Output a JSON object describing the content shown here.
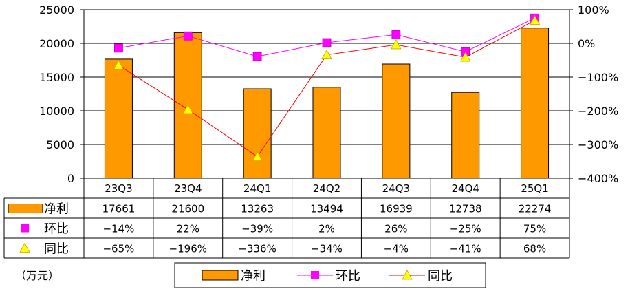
{
  "chart_data": {
    "type": "bar",
    "categories": [
      "23Q3",
      "23Q4",
      "24Q1",
      "24Q2",
      "24Q3",
      "24Q4",
      "25Q1"
    ],
    "series": [
      {
        "name": "净利",
        "kind": "bar",
        "axis": "left",
        "color": "#FF9900",
        "values": [
          17661,
          21600,
          13263,
          13494,
          16939,
          12738,
          22274
        ]
      },
      {
        "name": "环比",
        "kind": "line",
        "axis": "right",
        "color": "#FF00FF",
        "marker": "square",
        "values": [
          -14,
          22,
          -39,
          2,
          26,
          -25,
          75
        ]
      },
      {
        "name": "同比",
        "kind": "line",
        "axis": "right",
        "color": "#FF0000",
        "marker": "triangle",
        "marker_color": "#FFFF00",
        "values": [
          -65,
          -196,
          -336,
          -34,
          -4,
          -41,
          68
        ]
      }
    ],
    "y_left": {
      "min": 0,
      "max": 25000,
      "ticks": [
        0,
        5000,
        10000,
        15000,
        20000,
        25000
      ]
    },
    "y_right": {
      "min": -400,
      "max": 100,
      "ticks": [
        -400,
        -300,
        -200,
        -100,
        0,
        100
      ],
      "unit": "%"
    },
    "grid": true,
    "table": {
      "rows": [
        {
          "label": "净利",
          "cells": [
            "17661",
            "21600",
            "13263",
            "13494",
            "16939",
            "12738",
            "22274"
          ]
        },
        {
          "label": "环比",
          "cells": [
            "−14%",
            "22%",
            "−39%",
            "2%",
            "26%",
            "−25%",
            "75%"
          ]
        },
        {
          "label": "同比",
          "cells": [
            "−65%",
            "−196%",
            "−336%",
            "−34%",
            "−4%",
            "−41%",
            "68%"
          ]
        }
      ]
    },
    "legend": [
      "净利",
      "环比",
      "同比"
    ],
    "legend_position": "bottom",
    "unit_label": "（万元）"
  }
}
